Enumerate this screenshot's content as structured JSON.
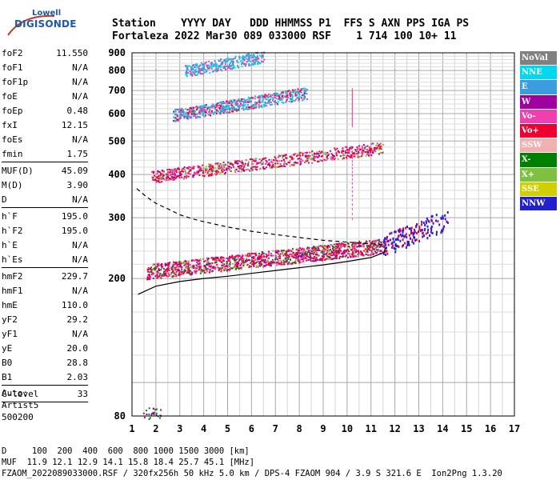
{
  "logo": {
    "top": "Lowell",
    "main": "DIGISONDE"
  },
  "header": {
    "line1": "Station    YYYY DAY   DDD HHMMSS P1  FFS S AXN PPS IGA PS",
    "line2": "Fortaleza 2022 Mar30 089 033000 RSF    1 714 100 10+ 11"
  },
  "params": [
    [
      {
        "label": "foF2",
        "value": "11.550"
      },
      {
        "label": "foF1",
        "value": "N/A"
      },
      {
        "label": "foF1p",
        "value": "N/A"
      },
      {
        "label": "foE",
        "value": "N/A"
      },
      {
        "label": "foEp",
        "value": "0.48"
      },
      {
        "label": "fxI",
        "value": "12.15"
      },
      {
        "label": "foEs",
        "value": "N/A"
      },
      {
        "label": "fmin",
        "value": "1.75"
      }
    ],
    [
      {
        "label": "MUF(D)",
        "value": "45.09"
      },
      {
        "label": "M(D)",
        "value": "3.90"
      },
      {
        "label": "D",
        "value": "N/A"
      }
    ],
    [
      {
        "label": "h`F",
        "value": "195.0"
      },
      {
        "label": "h`F2",
        "value": "195.0"
      },
      {
        "label": "h`E",
        "value": "N/A"
      },
      {
        "label": "h`Es",
        "value": "N/A"
      }
    ],
    [
      {
        "label": "hmF2",
        "value": "229.7"
      },
      {
        "label": "hmF1",
        "value": "N/A"
      },
      {
        "label": "hmE",
        "value": "110.0"
      },
      {
        "label": "yF2",
        "value": "29.2"
      },
      {
        "label": "yF1",
        "value": "N/A"
      },
      {
        "label": "yE",
        "value": "20.0"
      },
      {
        "label": "B0",
        "value": "28.8"
      },
      {
        "label": "B1",
        "value": "2.03"
      }
    ],
    [
      {
        "label": "C-level",
        "value": "33"
      }
    ]
  ],
  "side_extra": [
    "Auto:",
    "Artist5",
    "500200"
  ],
  "legend": [
    {
      "label": "NoVal",
      "color": "#808080"
    },
    {
      "label": "NNE",
      "color": "#00d8f0"
    },
    {
      "label": "E",
      "color": "#3c9ce0"
    },
    {
      "label": "W",
      "color": "#a000a0"
    },
    {
      "label": "Vo-",
      "color": "#f040b0"
    },
    {
      "label": "Vo+",
      "color": "#f00030"
    },
    {
      "label": "SSW",
      "color": "#f0b0b0"
    },
    {
      "label": "X-",
      "color": "#008000"
    },
    {
      "label": "X+",
      "color": "#80c040"
    },
    {
      "label": "SSE",
      "color": "#d0d000"
    },
    {
      "label": "NNW",
      "color": "#2020d0"
    }
  ],
  "footer": {
    "line1": "D     100  200  400  600  800 1000 1500 3000 [km]",
    "line2": "MUF  11.9 12.1 12.9 14.1 15.8 18.4 25.7 45.1 [MHz]",
    "line3": "FZAOM_2022089033000.RSF / 320fx256h 50 kHz 5.0 km / DPS-4 FZAOM 904 / 3.9 S 321.6 E  Ion2Png 1.3.20"
  },
  "chart_data": {
    "type": "scatter",
    "title": "",
    "xlabel": "",
    "ylabel": "",
    "xlim": [
      1,
      17
    ],
    "ylim": [
      80,
      900
    ],
    "x_ticks": [
      1,
      2,
      3,
      4,
      5,
      6,
      7,
      8,
      9,
      10,
      11,
      12,
      13,
      14,
      15,
      16,
      17
    ],
    "y_ticks": [
      80,
      200,
      300,
      400,
      500,
      600,
      700,
      800,
      900
    ],
    "y_scale": "log",
    "grid": true,
    "traces": [
      {
        "name": "o-trace 1st hop",
        "x_start": 1.6,
        "x_end": 11.6,
        "h_start": 210,
        "h_end": 250
      },
      {
        "name": "o-trace 2nd hop",
        "x_start": 1.8,
        "x_end": 11.5,
        "h_start": 395,
        "h_end": 480
      },
      {
        "name": "o-trace 3rd hop",
        "x_start": 2.7,
        "x_end": 8.3,
        "h_start": 595,
        "h_end": 690
      },
      {
        "name": "o-trace 4th hop",
        "x_start": 3.2,
        "x_end": 6.5,
        "h_start": 800,
        "h_end": 880
      },
      {
        "name": "x-trace spread",
        "x_start": 11.5,
        "x_end": 14.2,
        "h_start": 250,
        "h_end": 300
      },
      {
        "name": "low-frequency echoes",
        "x_start": 1.4,
        "x_end": 2.2,
        "h_start": 82,
        "h_end": 82
      }
    ],
    "profile_solid": {
      "x": [
        1.25,
        2,
        3,
        4,
        5,
        6,
        7,
        8,
        9,
        10,
        11,
        11.55,
        11.6
      ],
      "h": [
        180,
        190,
        196,
        200,
        203,
        207,
        211,
        215,
        219,
        224,
        230,
        238,
        246
      ]
    },
    "profile_dashed": {
      "x": [
        1.2,
        1.6,
        2,
        2.5,
        3,
        3.5,
        4,
        5,
        6,
        7,
        8,
        9,
        10,
        11,
        11.6
      ],
      "h": [
        364,
        345,
        330,
        318,
        306,
        298,
        292,
        282,
        274,
        268,
        263,
        258,
        255,
        252,
        250
      ]
    }
  }
}
